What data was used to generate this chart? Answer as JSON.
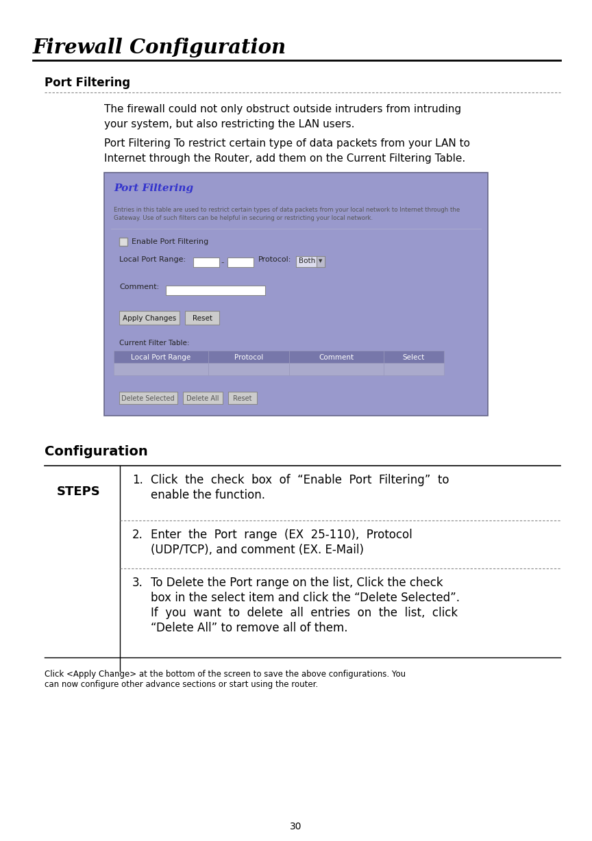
{
  "title": "Firewall Configuration",
  "section1": "Port Filtering",
  "desc1_line1": "The firewall could not only obstruct outside intruders from intruding",
  "desc1_line2": "your system, but also restricting the LAN users.",
  "desc2_line1": "Port Filtering To restrict certain type of data packets from your LAN to",
  "desc2_line2": "Internet through the Router, add them on the Current Filtering Table.",
  "ui_title": "Port Filtering",
  "ui_desc_line1": "Entries in this table are used to restrict certain types of data packets from your local network to Internet through the",
  "ui_desc_line2": "Gateway. Use of such filters can be helpful in securing or restricting your local network.",
  "ui_bg": "#9999cc",
  "ui_border": "#7777aa",
  "ui_title_color": "#3333cc",
  "section2": "Configuration",
  "steps_label": "STEPS",
  "footer_line1": "Click <Apply Change> at the bottom of the screen to save the above configurations. You",
  "footer_line2": "can now configure other advance sections or start using the router.",
  "page_number": "30",
  "bg_color": "#ffffff",
  "text_color": "#000000"
}
